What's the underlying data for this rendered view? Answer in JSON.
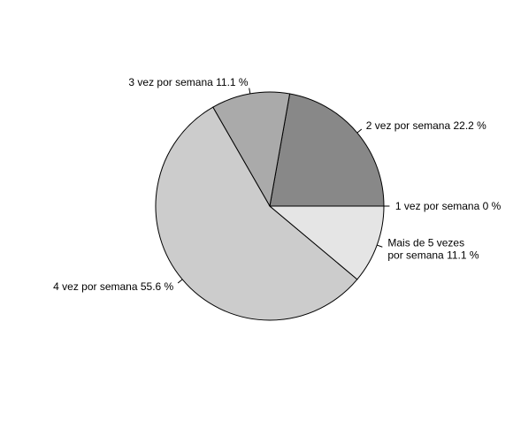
{
  "chart_data": {
    "type": "pie",
    "title": "",
    "direction": "counterclockwise",
    "start": "3 o'clock",
    "slices": [
      {
        "label": "1 vez por semana 0 %",
        "value": 0,
        "color": "#ffffff"
      },
      {
        "label": "2 vez por semana 22.2 %",
        "value": 22.2,
        "color": "#888888"
      },
      {
        "label": "3 vez por semana 11.1 %",
        "value": 11.1,
        "color": "#aaaaaa"
      },
      {
        "label": "4 vez por semana 55.6 %",
        "value": 55.6,
        "color": "#cccccc"
      },
      {
        "label_lines": [
          "Mais de 5 vezes",
          "por semana 11.1 %"
        ],
        "value": 11.1,
        "color": "#e5e5e5"
      }
    ]
  }
}
